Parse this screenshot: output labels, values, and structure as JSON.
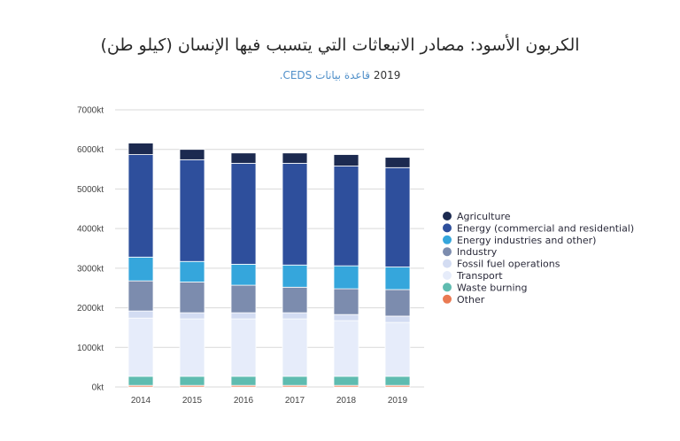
{
  "header": {
    "title": "الكربون الأسود: مصادر الانبعاثات التي يتسبب فيها الإنسان (كيلو طن)",
    "subtitle_year": "2019",
    "subtitle_source": "قاعدة بيانات CEDS."
  },
  "chart_data": {
    "type": "bar",
    "stacked": true,
    "title": "الكربون الأسود: مصادر الانبعاثات التي يتسبب فيها الإنسان (كيلو طن)",
    "subtitle": "2019 قاعدة بيانات CEDS.",
    "xlabel": "",
    "ylabel": "",
    "ylim": [
      0,
      7000
    ],
    "yticks": [
      0,
      1000,
      2000,
      3000,
      4000,
      5000,
      6000,
      7000
    ],
    "ytick_labels": [
      "0kt",
      "1000kt",
      "2000kt",
      "3000kt",
      "4000kt",
      "5000kt",
      "6000kt",
      "7000kt"
    ],
    "grid": true,
    "legend_position": "right",
    "categories": [
      "2014",
      "2015",
      "2016",
      "2017",
      "2018",
      "2019"
    ],
    "series": [
      {
        "name": "Other",
        "color": "#ea7a52",
        "values": [
          40,
          40,
          40,
          40,
          40,
          40
        ]
      },
      {
        "name": "Waste burning",
        "color": "#5fbcb0",
        "values": [
          230,
          230,
          230,
          230,
          230,
          230
        ]
      },
      {
        "name": "Transport",
        "color": "#e6ecfa",
        "values": [
          1470,
          1450,
          1450,
          1450,
          1405,
          1360
        ]
      },
      {
        "name": "Fossil fuel operations",
        "color": "#d3dcf2",
        "values": [
          180,
          155,
          155,
          155,
          155,
          160
        ]
      },
      {
        "name": "Industry",
        "color": "#7c8cae",
        "values": [
          760,
          775,
          695,
          645,
          650,
          670
        ]
      },
      {
        "name": "Energy industries and other)",
        "color": "#35a6dc",
        "values": [
          600,
          520,
          530,
          560,
          580,
          570
        ]
      },
      {
        "name": "Energy (commercial and residential)",
        "color": "#2e4f9c",
        "values": [
          2590,
          2570,
          2550,
          2570,
          2520,
          2510
        ]
      },
      {
        "name": "Agriculture",
        "color": "#1c2a50",
        "values": [
          290,
          260,
          260,
          260,
          290,
          260
        ]
      }
    ],
    "legend_order": [
      "Agriculture",
      "Energy (commercial and residential)",
      "Energy industries and other)",
      "Industry",
      "Fossil fuel operations",
      "Transport",
      "Waste burning",
      "Other"
    ]
  }
}
